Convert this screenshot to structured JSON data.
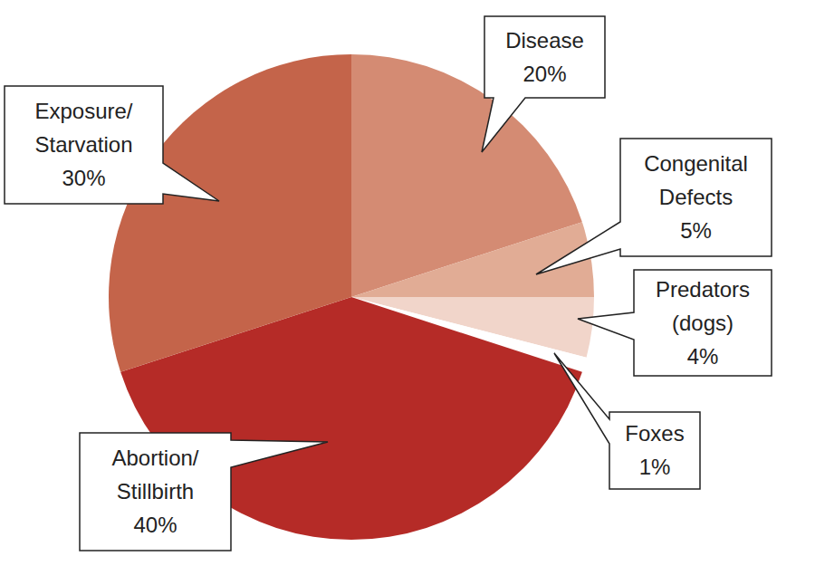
{
  "chart_data": {
    "type": "pie",
    "categories": [
      "Disease",
      "Congenital Defects",
      "Predators (dogs)",
      "Foxes",
      "Abortion/Stillbirth",
      "Exposure/Starvation"
    ],
    "values": [
      20,
      5,
      4,
      1,
      40,
      30
    ],
    "value_labels": [
      "20%",
      "5%",
      "4%",
      "1%",
      "40%",
      "30%"
    ],
    "colors": [
      "#d48b73",
      "#e1ac95",
      "#f1d5ca",
      "#ffffff",
      "#b52b27",
      "#c4644a"
    ],
    "data_labels": true
  }
}
